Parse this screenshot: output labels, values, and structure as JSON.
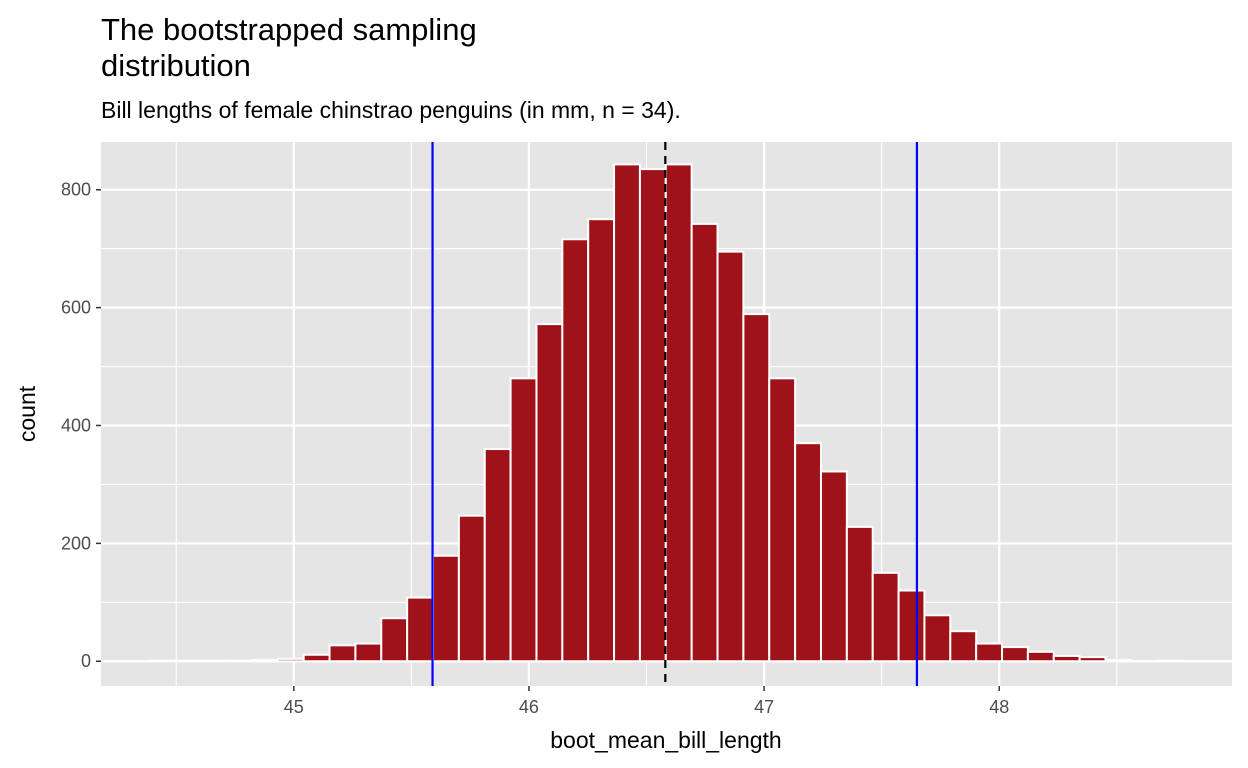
{
  "chart_data": {
    "type": "bar",
    "title": "The bootstrapped sampling distribution",
    "title_lines": [
      "The bootstrapped sampling",
      "distribution"
    ],
    "subtitle": "Bill lengths of female chinstrao penguins (in mm, n = 34).",
    "xlabel": "boot_mean_bill_length",
    "ylabel": "count",
    "xlim": [
      44.18,
      48.99
    ],
    "ylim": [
      -42,
      881
    ],
    "x_ticks": [
      45,
      46,
      47,
      48
    ],
    "y_ticks": [
      0,
      200,
      400,
      600,
      800
    ],
    "grid": true,
    "binwidth": 0.11,
    "bin_centers": [
      44.437,
      44.547,
      44.657,
      44.767,
      44.877,
      44.987,
      45.097,
      45.207,
      45.317,
      45.427,
      45.537,
      45.647,
      45.757,
      45.867,
      45.977,
      46.087,
      46.197,
      46.307,
      46.417,
      46.527,
      46.637,
      46.747,
      46.857,
      46.967,
      47.077,
      47.187,
      47.297,
      47.407,
      47.517,
      47.627,
      47.737,
      47.847,
      47.957,
      48.067,
      48.177,
      48.287,
      48.397,
      48.507,
      48.617,
      48.727
    ],
    "values": [
      1,
      1,
      1,
      1,
      2,
      4,
      11,
      27,
      30,
      73,
      108,
      179,
      247,
      360,
      480,
      572,
      716,
      750,
      843,
      835,
      843,
      742,
      695,
      589,
      480,
      370,
      322,
      228,
      150,
      120,
      78,
      51,
      30,
      24,
      16,
      9,
      7,
      2,
      0,
      1
    ],
    "vlines": [
      {
        "x": 45.59,
        "color": "#0000ff",
        "style": "solid"
      },
      {
        "x": 46.58,
        "color": "#000000",
        "style": "dashed"
      },
      {
        "x": 47.65,
        "color": "#0000ff",
        "style": "solid"
      }
    ],
    "colors": {
      "bar_fill": "#a0121a",
      "bar_outline": "#ffffff",
      "panel": "#e5e5e5",
      "grid": "#ffffff"
    }
  }
}
